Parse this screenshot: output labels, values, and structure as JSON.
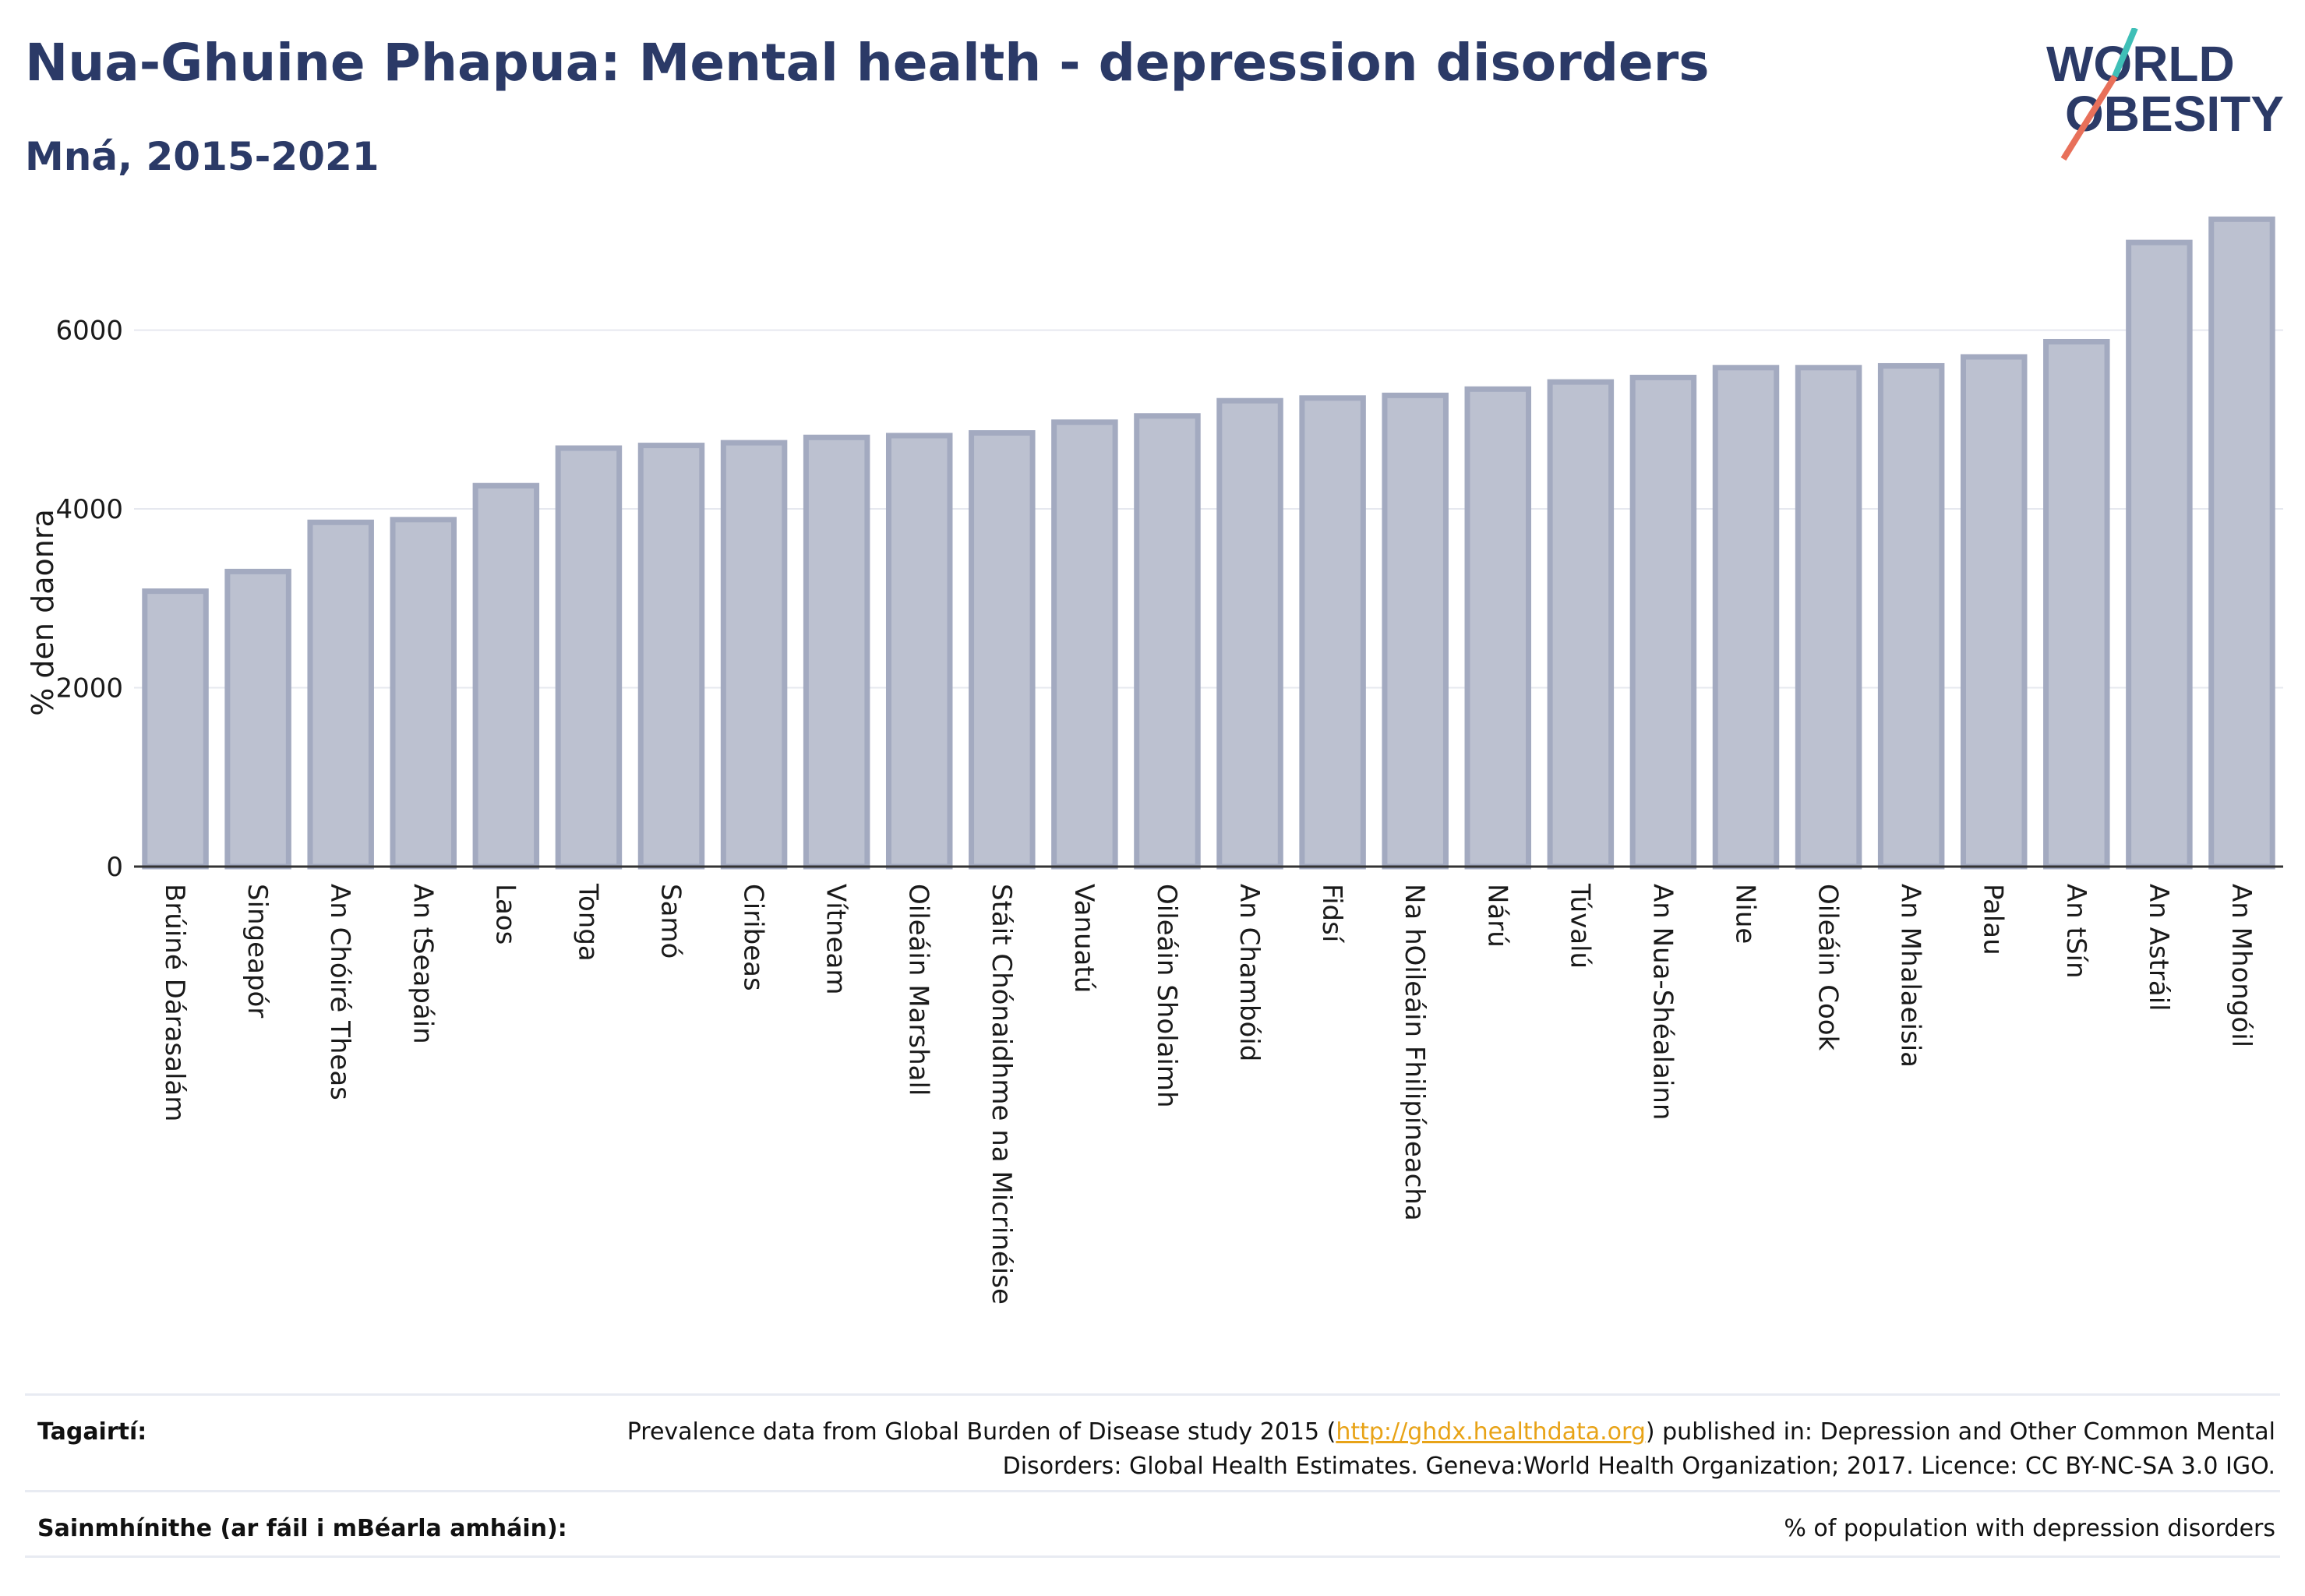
{
  "header": {
    "title": "Nua-Ghuine Phapua: Mental health - depression disorders",
    "subtitle": "Mná, 2015-2021"
  },
  "logo": {
    "line1": "WORLD",
    "line2": "OBESITY",
    "colors": {
      "text": "#2b3a67",
      "slash_top": "#3fbfb7",
      "slash_bottom": "#e8705a"
    }
  },
  "colors": {
    "bar_fill": "#bcc1d0",
    "bar_stroke": "#a3aac0",
    "axis": "#333333",
    "grid": "#e6e8ef"
  },
  "chart_data": {
    "type": "bar",
    "ylabel": "% den daonra",
    "ylim": [
      0,
      7600
    ],
    "yticks": [
      0,
      2000,
      4000,
      6000
    ],
    "grid": true,
    "categories": [
      "Brúiné Dárasalám",
      "Singeapór",
      "An Chóiré Theas",
      "An tSeapáin",
      "Laos",
      "Tonga",
      "Samó",
      "Ciribeas",
      "Vítneam",
      "Oileáin Marshall",
      "Stáit Chónaidhme na Micrinéise",
      "Vanuatú",
      "Oileáin Sholaimh",
      "An Chambóid",
      "Fidsí",
      "Na hOileáin Fhilipíneacha",
      "Nárú",
      "Túvalú",
      "An Nua-Shéalainn",
      "Niue",
      "Oileáin Cook",
      "An Mhalaeisia",
      "Palau",
      "An tSín",
      "An Astráil",
      "An Mhongóil"
    ],
    "values": [
      3080,
      3300,
      3850,
      3880,
      4260,
      4680,
      4710,
      4740,
      4800,
      4820,
      4850,
      4970,
      5040,
      5210,
      5240,
      5270,
      5340,
      5420,
      5470,
      5580,
      5580,
      5600,
      5700,
      5870,
      6980,
      7240
    ]
  },
  "footer": {
    "references_label": "Tagairtí:",
    "references_pre": "Prevalence data from Global Burden of Disease study 2015 (",
    "references_link": "http://ghdx.healthdata.org",
    "references_post": ") published in: Depression and Other Common Mental Disorders: Global Health Estimates. Geneva:World Health Organization; 2017. Licence: CC BY-NC-SA 3.0 IGO.",
    "definitions_label": "Sainmhínithe (ar fáil i mBéarla amháin):",
    "definitions_text": "% of population with depression disorders"
  }
}
